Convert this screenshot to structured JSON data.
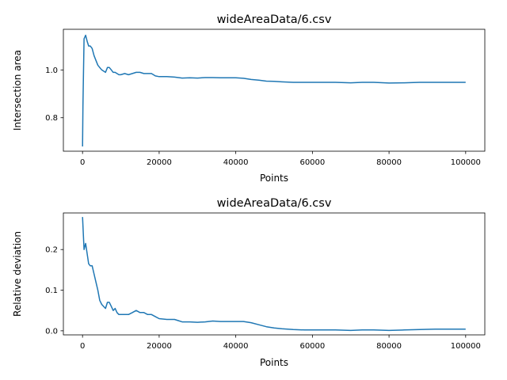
{
  "figure": {
    "background": "#ffffff",
    "line_color": "#1f77b4"
  },
  "chart_data": [
    {
      "type": "line",
      "title": "wideAreaData/6.csv",
      "xlabel": "Points",
      "ylabel": "Intersection area",
      "xlim": [
        -5000,
        105000
      ],
      "ylim": [
        0.66,
        1.17
      ],
      "xticks": [
        0,
        20000,
        40000,
        60000,
        80000,
        100000
      ],
      "xtick_labels": [
        "0",
        "20000",
        "40000",
        "60000",
        "80000",
        "100000"
      ],
      "yticks": [
        0.8,
        1.0
      ],
      "ytick_labels": [
        "0.8",
        "1.0"
      ],
      "grid": false,
      "series": [
        {
          "x": [
            0,
            100,
            400,
            800,
            1200,
            1600,
            2000,
            2500,
            3000,
            3500,
            4000,
            4500,
            5000,
            6000,
            6500,
            7000,
            7500,
            8000,
            8500,
            9000,
            9500,
            10000,
            11000,
            12000,
            13000,
            14000,
            15000,
            16000,
            17000,
            18000,
            19000,
            20000,
            22000,
            24000,
            25000,
            26000,
            28000,
            30000,
            32000,
            34000,
            36000,
            38000,
            40000,
            42000,
            44000,
            46000,
            48000,
            50000,
            52000,
            55000,
            58000,
            60000,
            63000,
            66000,
            70000,
            73000,
            76000,
            80000,
            84000,
            88000,
            92000,
            96000,
            100000
          ],
          "y": [
            0.68,
            0.85,
            1.13,
            1.145,
            1.12,
            1.1,
            1.1,
            1.09,
            1.06,
            1.04,
            1.02,
            1.01,
            1.0,
            0.99,
            1.01,
            1.01,
            1.0,
            0.99,
            0.99,
            0.985,
            0.98,
            0.98,
            0.985,
            0.98,
            0.985,
            0.99,
            0.99,
            0.985,
            0.985,
            0.985,
            0.975,
            0.972,
            0.972,
            0.97,
            0.968,
            0.966,
            0.967,
            0.966,
            0.968,
            0.968,
            0.967,
            0.967,
            0.967,
            0.965,
            0.96,
            0.957,
            0.953,
            0.952,
            0.95,
            0.948,
            0.948,
            0.948,
            0.948,
            0.948,
            0.946,
            0.948,
            0.948,
            0.945,
            0.946,
            0.948,
            0.948,
            0.948,
            0.948
          ]
        }
      ]
    },
    {
      "type": "line",
      "title": "wideAreaData/6.csv",
      "xlabel": "Points",
      "ylabel": "Relative deviation",
      "xlim": [
        -5000,
        105000
      ],
      "ylim": [
        -0.01,
        0.29
      ],
      "xticks": [
        0,
        20000,
        40000,
        60000,
        80000,
        100000
      ],
      "xtick_labels": [
        "0",
        "20000",
        "40000",
        "60000",
        "80000",
        "100000"
      ],
      "yticks": [
        0.0,
        0.1,
        0.2
      ],
      "ytick_labels": [
        "0.0",
        "0.1",
        "0.2"
      ],
      "grid": false,
      "series": [
        {
          "x": [
            0,
            400,
            800,
            1200,
            1600,
            2000,
            2500,
            3000,
            3500,
            4000,
            4500,
            5000,
            6000,
            6500,
            7000,
            7500,
            8000,
            8500,
            9000,
            9500,
            10000,
            11000,
            12000,
            13000,
            14000,
            15000,
            16000,
            17000,
            18000,
            19000,
            20000,
            22000,
            24000,
            25000,
            26000,
            28000,
            30000,
            32000,
            34000,
            36000,
            38000,
            40000,
            42000,
            44000,
            46000,
            48000,
            50000,
            52000,
            55000,
            58000,
            60000,
            63000,
            66000,
            70000,
            73000,
            76000,
            80000,
            84000,
            88000,
            92000,
            96000,
            100000
          ],
          "y": [
            0.28,
            0.2,
            0.215,
            0.19,
            0.165,
            0.16,
            0.16,
            0.14,
            0.12,
            0.1,
            0.075,
            0.065,
            0.055,
            0.07,
            0.07,
            0.06,
            0.05,
            0.055,
            0.045,
            0.04,
            0.04,
            0.04,
            0.04,
            0.045,
            0.05,
            0.045,
            0.045,
            0.04,
            0.04,
            0.035,
            0.03,
            0.028,
            0.028,
            0.025,
            0.022,
            0.022,
            0.021,
            0.022,
            0.024,
            0.023,
            0.023,
            0.023,
            0.023,
            0.02,
            0.015,
            0.01,
            0.007,
            0.005,
            0.003,
            0.002,
            0.002,
            0.002,
            0.002,
            0.001,
            0.002,
            0.002,
            0.001,
            0.002,
            0.003,
            0.004,
            0.004,
            0.004
          ]
        }
      ]
    }
  ]
}
